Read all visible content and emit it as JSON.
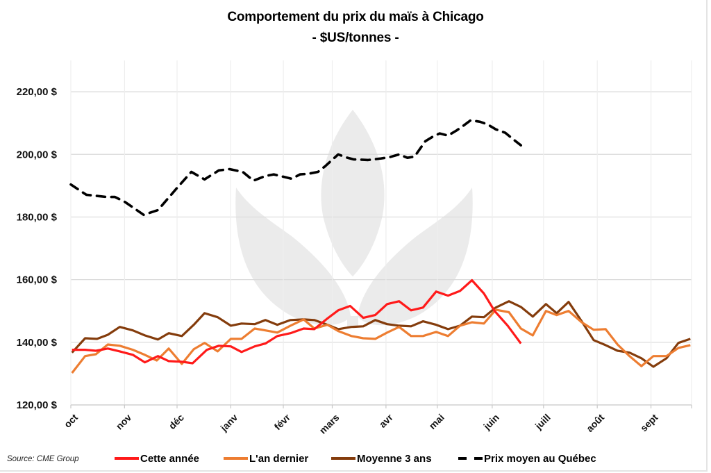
{
  "chart_data": {
    "type": "line",
    "title": "Comportement du prix du maïs à Chicago",
    "subtitle": "- $US/tonnes -",
    "xlabel": "",
    "ylabel": "",
    "x_unit": "weeks since start of October",
    "xlim": [
      0,
      52
    ],
    "ylim": [
      120,
      230
    ],
    "y_ticks": [
      {
        "value": 120,
        "label": "120,00 $"
      },
      {
        "value": 140,
        "label": "140,00 $"
      },
      {
        "value": 160,
        "label": "160,00 $"
      },
      {
        "value": 180,
        "label": "180,00 $"
      },
      {
        "value": 200,
        "label": "200,00 $"
      },
      {
        "value": 220,
        "label": "220,00 $"
      }
    ],
    "x_ticks": [
      {
        "week": 0,
        "label": "oct"
      },
      {
        "week": 4.5,
        "label": "nov"
      },
      {
        "week": 8.9,
        "label": "déc"
      },
      {
        "week": 13.4,
        "label": "janv"
      },
      {
        "week": 17.8,
        "label": "févr"
      },
      {
        "week": 21.9,
        "label": "mars"
      },
      {
        "week": 26.4,
        "label": "avr"
      },
      {
        "week": 30.7,
        "label": "mai"
      },
      {
        "week": 35.3,
        "label": "juin"
      },
      {
        "week": 39.6,
        "label": "juill"
      },
      {
        "week": 44.1,
        "label": "août"
      },
      {
        "week": 48.6,
        "label": "sept"
      }
    ],
    "grid": true,
    "legend_position": "bottom",
    "source": "Source: CME Group",
    "series": [
      {
        "name": "Cette année",
        "color": "#ff1a1a",
        "dash": false,
        "x": [
          0.1,
          1.2,
          2.1,
          3.1,
          4.1,
          5.2,
          6.2,
          7.3,
          8.2,
          9.3,
          10.2,
          11.4,
          12.4,
          13.4,
          14.3,
          15.4,
          16.3,
          17.3,
          18.4,
          19.5,
          20.4,
          21.5,
          22.4,
          23.4,
          24.5,
          25.5,
          26.5,
          27.5,
          28.5,
          29.5,
          30.6,
          31.6,
          32.6,
          33.6,
          34.6,
          35.5,
          36.6,
          37.7
        ],
        "y": [
          137.6,
          137.6,
          137.3,
          138.0,
          137.1,
          136.0,
          133.6,
          135.6,
          134.0,
          133.8,
          133.3,
          137.6,
          138.9,
          138.7,
          136.9,
          138.7,
          139.6,
          142.0,
          142.9,
          144.4,
          144.2,
          147.6,
          150.2,
          151.6,
          147.8,
          148.7,
          152.2,
          153.1,
          150.2,
          151.1,
          156.2,
          154.9,
          156.4,
          159.8,
          155.6,
          150.0,
          145.3,
          139.6
        ]
      },
      {
        "name": "L'an dernier",
        "color": "#ed7d31",
        "dash": false,
        "x": [
          0.1,
          1.2,
          2.1,
          3.1,
          4.1,
          5.2,
          6.2,
          7.2,
          8.2,
          9.3,
          10.3,
          11.2,
          12.3,
          13.4,
          14.3,
          15.4,
          16.3,
          17.3,
          18.4,
          19.5,
          20.4,
          21.5,
          22.4,
          23.5,
          24.5,
          25.5,
          26.5,
          27.5,
          28.5,
          29.5,
          30.6,
          31.6,
          32.6,
          33.6,
          34.6,
          35.6,
          36.7,
          37.7,
          38.7,
          39.8,
          40.7,
          41.7,
          42.8,
          43.8,
          44.8,
          45.8,
          46.8,
          47.8,
          48.8,
          49.9,
          50.9,
          51.9
        ],
        "y": [
          130.2,
          135.6,
          136.2,
          139.3,
          138.9,
          137.6,
          136.0,
          134.2,
          138.0,
          133.1,
          137.8,
          139.8,
          137.1,
          141.1,
          141.1,
          144.4,
          143.8,
          143.1,
          145.3,
          147.3,
          144.4,
          145.6,
          143.6,
          142.0,
          141.3,
          141.1,
          143.1,
          144.9,
          142.0,
          142.0,
          143.3,
          142.0,
          145.3,
          146.4,
          146.0,
          150.4,
          149.6,
          144.4,
          142.2,
          150.0,
          148.7,
          150.0,
          146.4,
          144.0,
          144.2,
          139.3,
          135.6,
          132.4,
          135.6,
          135.6,
          138.2,
          139.1
        ]
      },
      {
        "name": "Moyenne 3 ans",
        "color": "#843c0c",
        "dash": false,
        "x": [
          0.1,
          1.2,
          2.2,
          3.1,
          4.1,
          5.2,
          6.2,
          7.3,
          8.2,
          9.3,
          10.3,
          11.2,
          12.3,
          13.4,
          14.3,
          15.4,
          16.3,
          17.3,
          18.4,
          19.5,
          20.4,
          21.5,
          22.4,
          23.5,
          24.5,
          25.5,
          26.5,
          27.5,
          28.5,
          29.5,
          30.6,
          31.6,
          32.6,
          33.6,
          34.6,
          35.6,
          36.7,
          37.7,
          38.7,
          39.8,
          40.7,
          41.7,
          42.8,
          43.8,
          44.8,
          45.8,
          46.8,
          47.8,
          48.8,
          49.9,
          50.9,
          51.9
        ],
        "y": [
          136.7,
          141.3,
          141.1,
          142.4,
          144.9,
          143.8,
          142.2,
          140.9,
          142.9,
          142.0,
          145.6,
          149.3,
          148.0,
          145.3,
          146.0,
          145.8,
          147.1,
          145.6,
          147.1,
          147.3,
          147.1,
          145.6,
          144.2,
          144.9,
          145.1,
          147.1,
          145.8,
          145.3,
          145.1,
          146.7,
          145.6,
          144.2,
          145.3,
          148.2,
          148.0,
          151.1,
          153.1,
          151.3,
          148.2,
          152.2,
          149.3,
          152.9,
          146.7,
          140.7,
          139.1,
          137.3,
          136.7,
          134.9,
          132.2,
          134.9,
          139.8,
          141.1
        ]
      },
      {
        "name": "Prix moyen au Québec",
        "color": "#000000",
        "dash": true,
        "x": [
          0,
          1.3,
          3.0,
          3.7,
          4.5,
          6.1,
          7.3,
          8.9,
          10.1,
          11.2,
          12.4,
          13.3,
          14.4,
          15.3,
          16.3,
          17.0,
          18.5,
          19.2,
          19.9,
          20.7,
          21.3,
          22.4,
          23.0,
          23.7,
          24.9,
          26.0,
          26.7,
          27.5,
          28.2,
          28.8,
          29.7,
          30.3,
          30.9,
          31.6,
          32.3,
          32.8,
          33.5,
          34.3,
          34.9,
          35.6,
          36.4,
          36.9,
          37.7
        ],
        "y": [
          190.4,
          187.1,
          186.4,
          186.4,
          184.9,
          180.7,
          182.2,
          189.3,
          194.4,
          192.0,
          194.9,
          195.3,
          194.4,
          191.6,
          193.1,
          193.6,
          192.2,
          193.6,
          193.8,
          194.4,
          196.2,
          200.0,
          199.1,
          198.4,
          198.2,
          198.7,
          199.1,
          200.0,
          198.9,
          199.3,
          204.2,
          205.6,
          206.7,
          206.0,
          207.6,
          208.9,
          210.9,
          210.4,
          209.6,
          208.0,
          206.9,
          205.3,
          202.9
        ]
      }
    ]
  },
  "watermark_color": "#ebebeb",
  "grid_color": "#d9d9d9"
}
